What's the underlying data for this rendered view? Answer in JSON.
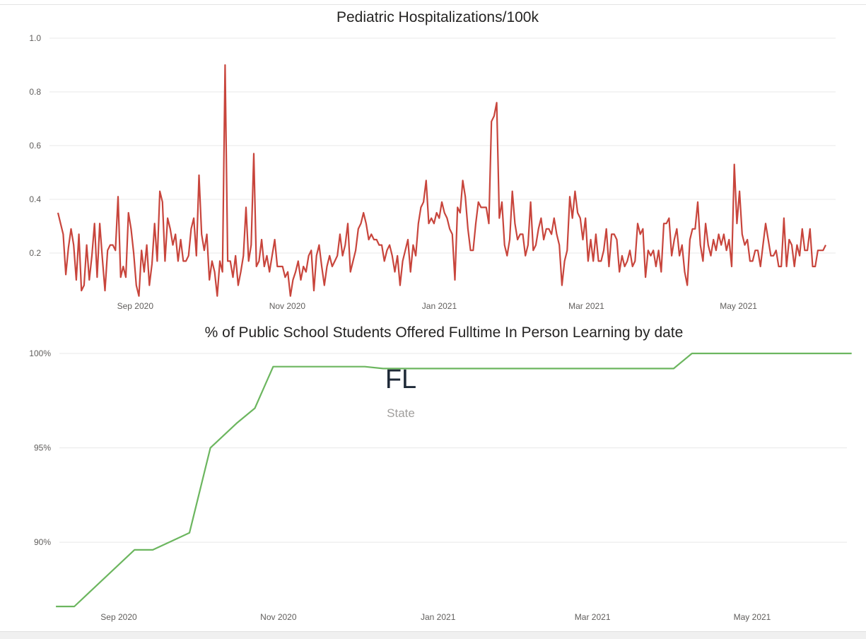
{
  "chart_data": [
    {
      "type": "line",
      "title": "Pediatric Hospitalizations/100k",
      "xlabel": "",
      "ylabel": "",
      "x_ticks": [
        "Sep 2020",
        "Nov 2020",
        "Jan 2021",
        "Mar 2021",
        "May 2021"
      ],
      "y_ticks": [
        "0.2",
        "0.4",
        "0.6",
        "0.8",
        "1.0"
      ],
      "ylim": [
        0.0,
        1.0
      ],
      "grid": true,
      "series": [
        {
          "color": "#c8453c",
          "x_start": "2020-08-01",
          "x_end": "2021-06-05",
          "values": [
            0.35,
            0.31,
            0.27,
            0.12,
            0.22,
            0.29,
            0.23,
            0.1,
            0.27,
            0.06,
            0.08,
            0.23,
            0.1,
            0.19,
            0.31,
            0.11,
            0.31,
            0.18,
            0.06,
            0.21,
            0.23,
            0.23,
            0.21,
            0.41,
            0.11,
            0.15,
            0.11,
            0.35,
            0.29,
            0.2,
            0.08,
            0.04,
            0.21,
            0.13,
            0.23,
            0.08,
            0.16,
            0.31,
            0.17,
            0.43,
            0.39,
            0.17,
            0.33,
            0.29,
            0.23,
            0.27,
            0.17,
            0.25,
            0.17,
            0.17,
            0.19,
            0.29,
            0.33,
            0.19,
            0.49,
            0.27,
            0.21,
            0.27,
            0.1,
            0.17,
            0.13,
            0.04,
            0.17,
            0.13,
            0.9,
            0.17,
            0.17,
            0.11,
            0.19,
            0.08,
            0.13,
            0.19,
            0.37,
            0.17,
            0.23,
            0.57,
            0.15,
            0.17,
            0.25,
            0.15,
            0.19,
            0.13,
            0.19,
            0.25,
            0.15,
            0.15,
            0.15,
            0.11,
            0.13,
            0.04,
            0.1,
            0.13,
            0.17,
            0.1,
            0.15,
            0.13,
            0.19,
            0.21,
            0.06,
            0.19,
            0.23,
            0.15,
            0.08,
            0.15,
            0.19,
            0.15,
            0.17,
            0.19,
            0.27,
            0.19,
            0.23,
            0.31,
            0.13,
            0.17,
            0.21,
            0.29,
            0.31,
            0.35,
            0.31,
            0.25,
            0.27,
            0.25,
            0.25,
            0.23,
            0.23,
            0.17,
            0.21,
            0.23,
            0.19,
            0.13,
            0.19,
            0.08,
            0.17,
            0.21,
            0.25,
            0.13,
            0.23,
            0.19,
            0.31,
            0.37,
            0.39,
            0.47,
            0.31,
            0.33,
            0.31,
            0.35,
            0.33,
            0.39,
            0.35,
            0.33,
            0.29,
            0.27,
            0.1,
            0.37,
            0.35,
            0.47,
            0.41,
            0.29,
            0.21,
            0.21,
            0.31,
            0.39,
            0.37,
            0.37,
            0.37,
            0.31,
            0.69,
            0.71,
            0.76,
            0.33,
            0.39,
            0.23,
            0.19,
            0.25,
            0.43,
            0.31,
            0.25,
            0.27,
            0.27,
            0.19,
            0.23,
            0.39,
            0.21,
            0.23,
            0.29,
            0.33,
            0.25,
            0.29,
            0.29,
            0.27,
            0.33,
            0.27,
            0.23,
            0.08,
            0.17,
            0.21,
            0.41,
            0.33,
            0.43,
            0.35,
            0.33,
            0.25,
            0.33,
            0.17,
            0.25,
            0.17,
            0.27,
            0.17,
            0.17,
            0.21,
            0.29,
            0.15,
            0.27,
            0.27,
            0.25,
            0.13,
            0.19,
            0.15,
            0.17,
            0.21,
            0.15,
            0.17,
            0.31,
            0.27,
            0.29,
            0.11,
            0.21,
            0.19,
            0.21,
            0.15,
            0.21,
            0.13,
            0.31,
            0.31,
            0.33,
            0.19,
            0.25,
            0.29,
            0.19,
            0.23,
            0.13,
            0.08,
            0.25,
            0.29,
            0.29,
            0.39,
            0.23,
            0.17,
            0.31,
            0.23,
            0.19,
            0.25,
            0.21,
            0.27,
            0.23,
            0.27,
            0.21,
            0.25,
            0.15,
            0.53,
            0.31,
            0.43,
            0.27,
            0.23,
            0.25,
            0.17,
            0.17,
            0.21,
            0.21,
            0.15,
            0.23,
            0.31,
            0.25,
            0.19,
            0.19,
            0.21,
            0.15,
            0.15,
            0.33,
            0.15,
            0.25,
            0.23,
            0.15,
            0.23,
            0.19,
            0.29,
            0.21,
            0.21,
            0.29,
            0.15,
            0.15,
            0.21,
            0.21,
            0.21,
            0.23
          ]
        }
      ]
    },
    {
      "type": "line",
      "title": "% of Public School Students Offered Fulltime In Person Learning by date",
      "xlabel": "",
      "ylabel": "",
      "x_ticks": [
        "Sep 2020",
        "Nov 2020",
        "Jan 2021",
        "Mar 2021",
        "May 2021"
      ],
      "y_ticks": [
        "90%",
        "95%",
        "100%"
      ],
      "ylim": [
        86.6,
        100.0
      ],
      "grid": true,
      "series": [
        {
          "color": "#6cb65f",
          "x": [
            "2020-08-08",
            "2020-08-15",
            "2020-09-07",
            "2020-09-14",
            "2020-09-28",
            "2020-10-06",
            "2020-10-16",
            "2020-10-23",
            "2020-10-30",
            "2020-12-04",
            "2020-12-11",
            "2021-04-01",
            "2021-04-08",
            "2021-06-08"
          ],
          "y": [
            86.6,
            86.6,
            89.6,
            89.6,
            90.5,
            95.0,
            96.3,
            97.1,
            99.3,
            99.3,
            99.2,
            99.2,
            100.0,
            100.0
          ]
        }
      ]
    }
  ],
  "card": {
    "value": "FL",
    "label": "State"
  }
}
